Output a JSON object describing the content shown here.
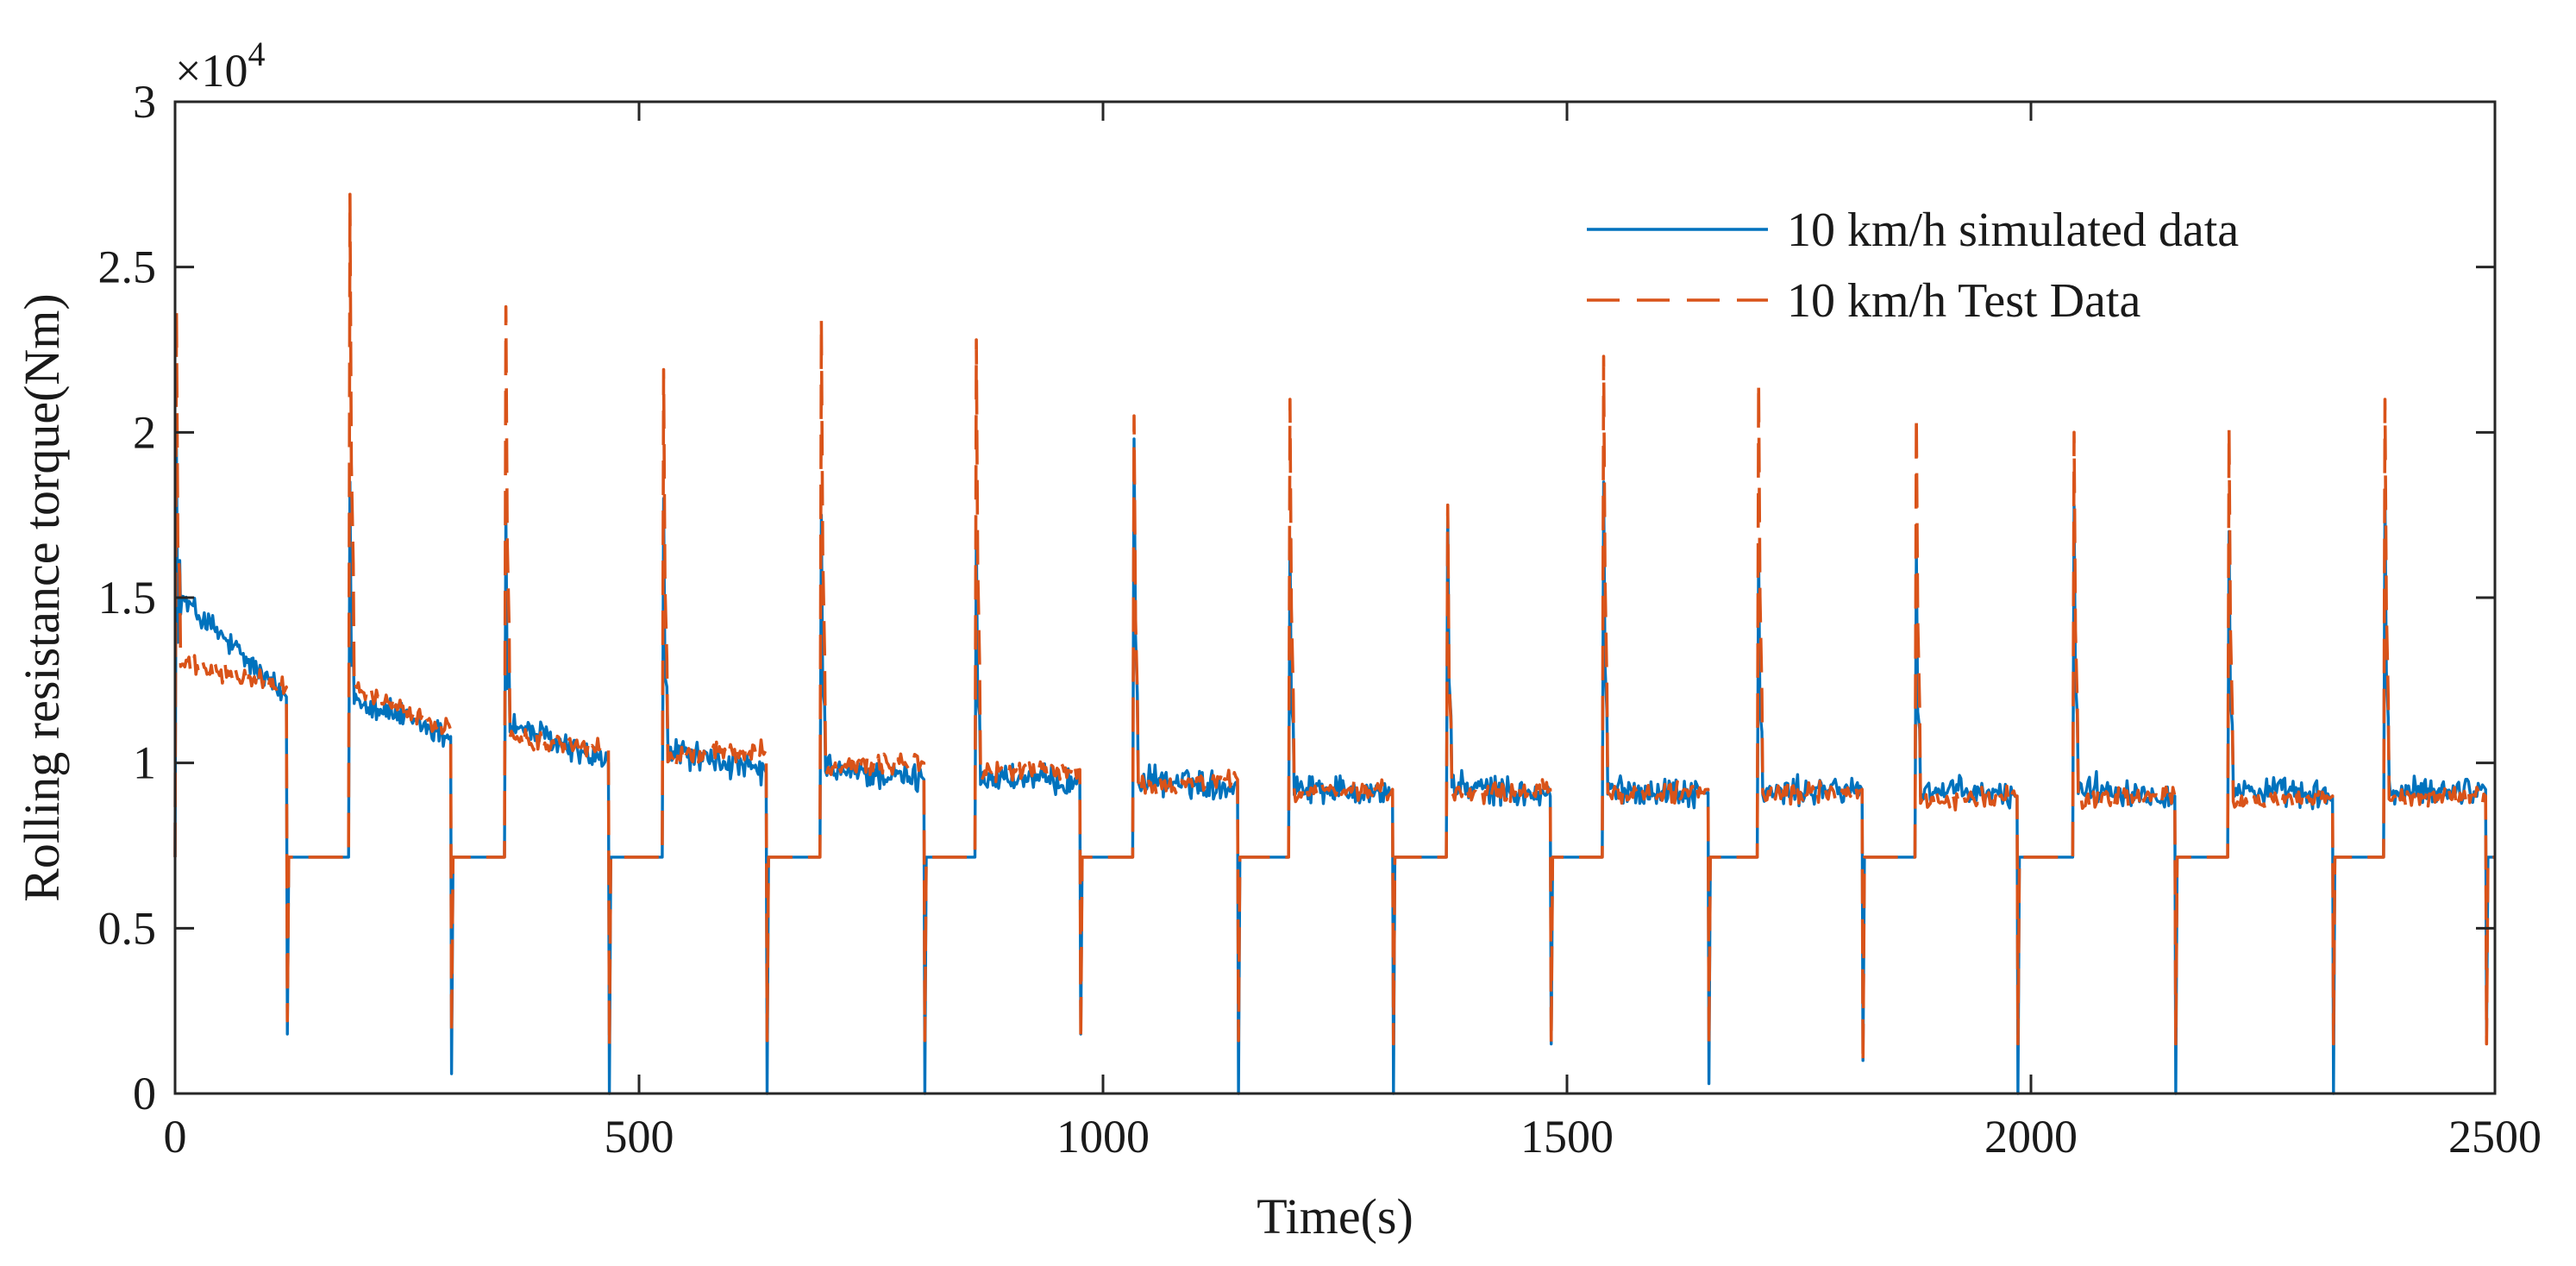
{
  "chart_data": {
    "type": "line",
    "xlabel": "Time(s)",
    "ylabel": "Rolling resistance torque(Nm)",
    "xlim": [
      0,
      2500
    ],
    "ylim": [
      0,
      30000
    ],
    "y_exponent_label": "×10",
    "y_exponent_power": "4",
    "xticks": [
      0,
      500,
      1000,
      1500,
      2000,
      2500
    ],
    "xtick_labels": [
      "0",
      "500",
      "1000",
      "1500",
      "2000",
      "2500"
    ],
    "yticks": [
      0,
      5000,
      10000,
      15000,
      20000,
      25000,
      30000
    ],
    "ytick_labels": [
      "0",
      "0.5",
      "1",
      "1.5",
      "2",
      "2.5",
      "3"
    ],
    "grid": false,
    "legend_position": "top-right",
    "idle_level": 7150,
    "series": [
      {
        "name": "10 km/h simulated data",
        "color": "#0072BD",
        "style": "solid",
        "cycles": [
          {
            "rise": 0,
            "peak": 19500,
            "start": 15000,
            "end": 12000,
            "fall": 120,
            "dip": 1800
          },
          {
            "rise": 187,
            "peak": 18500,
            "start": 12000,
            "end": 10800,
            "fall": 297,
            "dip": 600
          },
          {
            "rise": 355,
            "peak": 17500,
            "start": 11200,
            "end": 10000,
            "fall": 467,
            "dip": 0
          },
          {
            "rise": 525,
            "peak": 18000,
            "start": 10400,
            "end": 9700,
            "fall": 637,
            "dip": 0
          },
          {
            "rise": 695,
            "peak": 17500,
            "start": 9800,
            "end": 9500,
            "fall": 807,
            "dip": 0
          },
          {
            "rise": 862,
            "peak": 17000,
            "start": 9600,
            "end": 9400,
            "fall": 975,
            "dip": 1800
          },
          {
            "rise": 1032,
            "peak": 19800,
            "start": 9500,
            "end": 9300,
            "fall": 1145,
            "dip": 0
          },
          {
            "rise": 1200,
            "peak": 16800,
            "start": 9300,
            "end": 9100,
            "fall": 1312,
            "dip": 0
          },
          {
            "rise": 1370,
            "peak": 17800,
            "start": 9300,
            "end": 9000,
            "fall": 1482,
            "dip": 1500
          },
          {
            "rise": 1538,
            "peak": 18500,
            "start": 9200,
            "end": 9100,
            "fall": 1652,
            "dip": 300
          },
          {
            "rise": 1705,
            "peak": 16500,
            "start": 9100,
            "end": 9200,
            "fall": 1818,
            "dip": 1000
          },
          {
            "rise": 1875,
            "peak": 16500,
            "start": 9200,
            "end": 9000,
            "fall": 1985,
            "dip": 0
          },
          {
            "rise": 2045,
            "peak": 17800,
            "start": 9300,
            "end": 9000,
            "fall": 2155,
            "dip": 0
          },
          {
            "rise": 2212,
            "peak": 17000,
            "start": 9200,
            "end": 9000,
            "fall": 2325,
            "dip": 0
          },
          {
            "rise": 2380,
            "peak": 18200,
            "start": 9100,
            "end": 9200,
            "fall": 2490,
            "dip": 1800
          }
        ]
      },
      {
        "name": "10 km/h Test Data",
        "color": "#D95319",
        "style": "dashed",
        "cycles": [
          {
            "rise": 0,
            "peak": 23700,
            "start": 13000,
            "end": 12300,
            "fall": 120,
            "dip": 2200
          },
          {
            "rise": 187,
            "peak": 27200,
            "start": 12300,
            "end": 11000,
            "fall": 297,
            "dip": 1800
          },
          {
            "rise": 355,
            "peak": 23800,
            "start": 10800,
            "end": 10400,
            "fall": 467,
            "dip": 1400
          },
          {
            "rise": 525,
            "peak": 21900,
            "start": 10200,
            "end": 10400,
            "fall": 637,
            "dip": 1600
          },
          {
            "rise": 695,
            "peak": 23400,
            "start": 9900,
            "end": 10000,
            "fall": 807,
            "dip": 1600
          },
          {
            "rise": 862,
            "peak": 22800,
            "start": 9700,
            "end": 9800,
            "fall": 975,
            "dip": 1600
          },
          {
            "rise": 1032,
            "peak": 20500,
            "start": 9300,
            "end": 9500,
            "fall": 1145,
            "dip": 1600
          },
          {
            "rise": 1200,
            "peak": 21000,
            "start": 9100,
            "end": 9200,
            "fall": 1312,
            "dip": 1500
          },
          {
            "rise": 1370,
            "peak": 17800,
            "start": 9000,
            "end": 9200,
            "fall": 1482,
            "dip": 1500
          },
          {
            "rise": 1538,
            "peak": 22300,
            "start": 9000,
            "end": 9200,
            "fall": 1652,
            "dip": 1500
          },
          {
            "rise": 1705,
            "peak": 21500,
            "start": 9000,
            "end": 9200,
            "fall": 1818,
            "dip": 900
          },
          {
            "rise": 1875,
            "peak": 20500,
            "start": 8800,
            "end": 9000,
            "fall": 1985,
            "dip": 1500
          },
          {
            "rise": 2045,
            "peak": 20000,
            "start": 8900,
            "end": 9000,
            "fall": 2155,
            "dip": 1500
          },
          {
            "rise": 2212,
            "peak": 20100,
            "start": 8700,
            "end": 9000,
            "fall": 2325,
            "dip": 1500
          },
          {
            "rise": 2380,
            "peak": 21000,
            "start": 8900,
            "end": 9000,
            "fall": 2490,
            "dip": 1500
          }
        ]
      }
    ]
  }
}
